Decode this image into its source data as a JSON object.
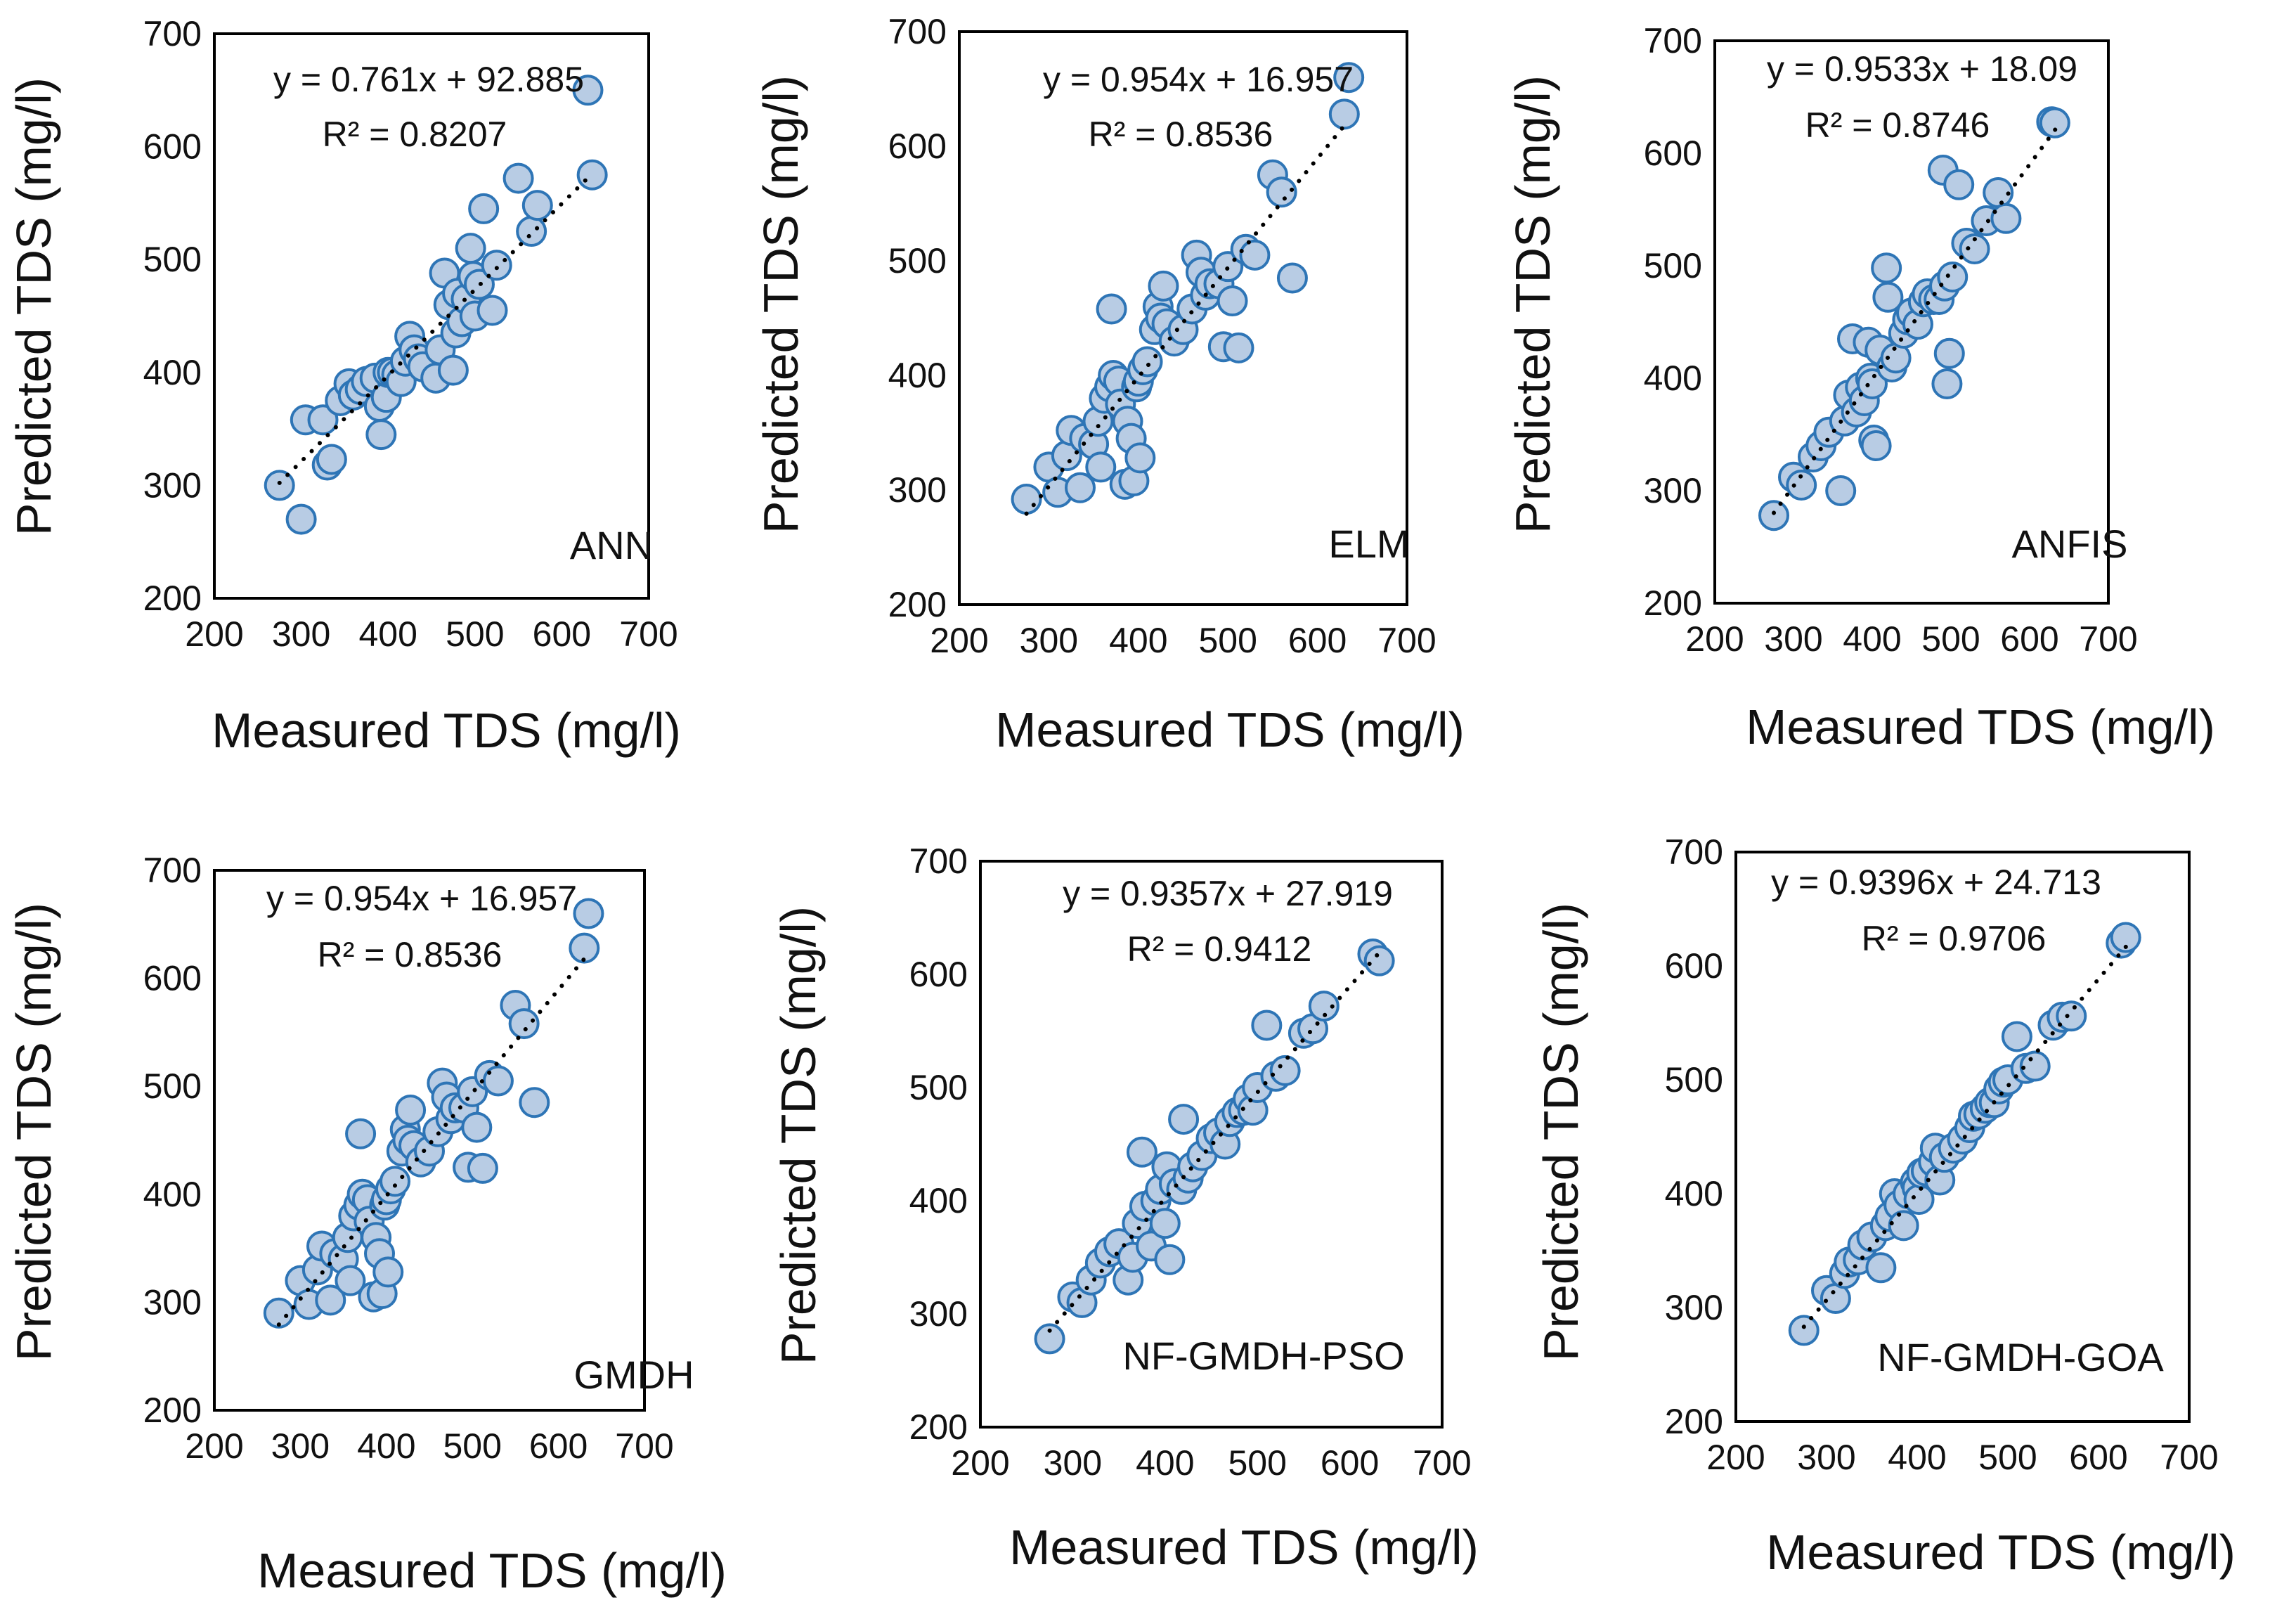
{
  "figure": {
    "style": {
      "marker_fill": "#b8cce4",
      "marker_edge": "#2e75b6",
      "trendline_color": "#000000",
      "frame_color": "#000000"
    },
    "shared_axes": {
      "xlabel": "Measured TDS (mg/l)",
      "ylabel": "Predicted TDS (mg/l)",
      "xlim": [
        200,
        700
      ],
      "ylim": [
        200,
        700
      ],
      "ticks": [
        200,
        300,
        400,
        500,
        600,
        700
      ]
    }
  },
  "chart_data": [
    {
      "type": "scatter",
      "model": "ANN",
      "xlabel": "Measured TDS (mg/l)",
      "ylabel": "Predicted TDS (mg/l)",
      "xlim": [
        200,
        700
      ],
      "ylim": [
        200,
        700
      ],
      "equation": "y = 0.761x + 92.885",
      "r2": "R² = 0.8207",
      "trend": {
        "slope": 0.761,
        "intercept": 92.885,
        "x_range": [
          275,
          635
        ]
      },
      "points": [
        [
          275,
          300
        ],
        [
          300,
          270
        ],
        [
          305,
          358
        ],
        [
          325,
          358
        ],
        [
          330,
          318
        ],
        [
          335,
          323
        ],
        [
          345,
          375
        ],
        [
          355,
          390
        ],
        [
          360,
          380
        ],
        [
          368,
          385
        ],
        [
          375,
          392
        ],
        [
          385,
          395
        ],
        [
          390,
          370
        ],
        [
          392,
          345
        ],
        [
          398,
          378
        ],
        [
          400,
          400
        ],
        [
          405,
          400
        ],
        [
          410,
          398
        ],
        [
          415,
          392
        ],
        [
          420,
          410
        ],
        [
          425,
          432
        ],
        [
          430,
          420
        ],
        [
          435,
          412
        ],
        [
          440,
          405
        ],
        [
          455,
          395
        ],
        [
          460,
          420
        ],
        [
          465,
          488
        ],
        [
          470,
          460
        ],
        [
          475,
          402
        ],
        [
          478,
          435
        ],
        [
          480,
          470
        ],
        [
          485,
          445
        ],
        [
          490,
          465
        ],
        [
          495,
          510
        ],
        [
          498,
          485
        ],
        [
          500,
          450
        ],
        [
          505,
          478
        ],
        [
          510,
          545
        ],
        [
          520,
          455
        ],
        [
          525,
          495
        ],
        [
          550,
          572
        ],
        [
          565,
          525
        ],
        [
          572,
          548
        ],
        [
          630,
          650
        ],
        [
          635,
          575
        ]
      ]
    },
    {
      "type": "scatter",
      "model": "ELM",
      "xlabel": "Measured TDS (mg/l)",
      "ylabel": "Predicted TDS (mg/l)",
      "xlim": [
        200,
        700
      ],
      "ylim": [
        200,
        700
      ],
      "equation": "y = 0.954x + 16.957",
      "r2": "R² = 0.8536",
      "trend": {
        "slope": 0.954,
        "intercept": 16.957,
        "x_range": [
          275,
          635
        ]
      },
      "points": [
        [
          275,
          292
        ],
        [
          300,
          320
        ],
        [
          310,
          298
        ],
        [
          320,
          330
        ],
        [
          325,
          352
        ],
        [
          335,
          302
        ],
        [
          340,
          345
        ],
        [
          350,
          340
        ],
        [
          355,
          360
        ],
        [
          358,
          320
        ],
        [
          362,
          380
        ],
        [
          368,
          390
        ],
        [
          370,
          458
        ],
        [
          372,
          400
        ],
        [
          378,
          395
        ],
        [
          380,
          375
        ],
        [
          385,
          305
        ],
        [
          388,
          360
        ],
        [
          392,
          345
        ],
        [
          395,
          308
        ],
        [
          398,
          390
        ],
        [
          400,
          395
        ],
        [
          402,
          328
        ],
        [
          405,
          405
        ],
        [
          410,
          412
        ],
        [
          418,
          440
        ],
        [
          422,
          460
        ],
        [
          425,
          450
        ],
        [
          428,
          478
        ],
        [
          432,
          445
        ],
        [
          440,
          430
        ],
        [
          450,
          440
        ],
        [
          460,
          458
        ],
        [
          465,
          505
        ],
        [
          470,
          490
        ],
        [
          475,
          470
        ],
        [
          480,
          480
        ],
        [
          490,
          480
        ],
        [
          495,
          425
        ],
        [
          500,
          495
        ],
        [
          505,
          465
        ],
        [
          512,
          424
        ],
        [
          520,
          510
        ],
        [
          530,
          505
        ],
        [
          550,
          575
        ],
        [
          560,
          560
        ],
        [
          572,
          485
        ],
        [
          630,
          628
        ],
        [
          635,
          660
        ]
      ]
    },
    {
      "type": "scatter",
      "model": "ANFIS",
      "xlabel": "Measured TDS (mg/l)",
      "ylabel": "Predicted TDS (mg/l)",
      "xlim": [
        200,
        700
      ],
      "ylim": [
        200,
        700
      ],
      "equation": "y = 0.9533x + 18.09",
      "r2": "R² = 0.8746",
      "trend": {
        "slope": 0.9533,
        "intercept": 18.09,
        "x_range": [
          275,
          635
        ]
      },
      "points": [
        [
          275,
          278
        ],
        [
          300,
          312
        ],
        [
          310,
          305
        ],
        [
          325,
          330
        ],
        [
          335,
          340
        ],
        [
          345,
          352
        ],
        [
          360,
          300
        ],
        [
          365,
          362
        ],
        [
          370,
          385
        ],
        [
          375,
          435
        ],
        [
          380,
          370
        ],
        [
          385,
          392
        ],
        [
          390,
          380
        ],
        [
          395,
          432
        ],
        [
          398,
          400
        ],
        [
          400,
          395
        ],
        [
          402,
          345
        ],
        [
          405,
          340
        ],
        [
          410,
          425
        ],
        [
          418,
          498
        ],
        [
          420,
          472
        ],
        [
          425,
          410
        ],
        [
          430,
          418
        ],
        [
          440,
          440
        ],
        [
          445,
          452
        ],
        [
          450,
          458
        ],
        [
          458,
          448
        ],
        [
          465,
          468
        ],
        [
          470,
          475
        ],
        [
          478,
          470
        ],
        [
          485,
          470
        ],
        [
          490,
          585
        ],
        [
          492,
          482
        ],
        [
          495,
          395
        ],
        [
          498,
          422
        ],
        [
          502,
          490
        ],
        [
          510,
          572
        ],
        [
          520,
          520
        ],
        [
          530,
          515
        ],
        [
          545,
          540
        ],
        [
          560,
          565
        ],
        [
          570,
          542
        ],
        [
          628,
          628
        ],
        [
          632,
          627
        ]
      ]
    },
    {
      "type": "scatter",
      "model": "GMDH",
      "xlabel": "Measured TDS (mg/l)",
      "ylabel": "Predicted TDS (mg/l)",
      "xlim": [
        200,
        700
      ],
      "ylim": [
        200,
        700
      ],
      "equation": "y = 0.954x + 16.957",
      "r2": "R² = 0.8536",
      "trend": {
        "slope": 0.954,
        "intercept": 16.957,
        "x_range": [
          275,
          635
        ]
      },
      "points": [
        [
          275,
          290
        ],
        [
          300,
          320
        ],
        [
          310,
          298
        ],
        [
          320,
          330
        ],
        [
          325,
          352
        ],
        [
          335,
          302
        ],
        [
          340,
          345
        ],
        [
          350,
          340
        ],
        [
          355,
          360
        ],
        [
          358,
          320
        ],
        [
          362,
          380
        ],
        [
          368,
          390
        ],
        [
          370,
          456
        ],
        [
          372,
          400
        ],
        [
          378,
          395
        ],
        [
          380,
          375
        ],
        [
          385,
          305
        ],
        [
          388,
          360
        ],
        [
          392,
          345
        ],
        [
          395,
          308
        ],
        [
          398,
          390
        ],
        [
          400,
          395
        ],
        [
          402,
          328
        ],
        [
          405,
          405
        ],
        [
          410,
          412
        ],
        [
          418,
          440
        ],
        [
          422,
          460
        ],
        [
          425,
          450
        ],
        [
          428,
          478
        ],
        [
          432,
          445
        ],
        [
          440,
          430
        ],
        [
          450,
          440
        ],
        [
          460,
          458
        ],
        [
          465,
          503
        ],
        [
          470,
          490
        ],
        [
          475,
          470
        ],
        [
          480,
          480
        ],
        [
          490,
          480
        ],
        [
          495,
          425
        ],
        [
          500,
          495
        ],
        [
          505,
          462
        ],
        [
          512,
          424
        ],
        [
          520,
          510
        ],
        [
          530,
          505
        ],
        [
          550,
          575
        ],
        [
          560,
          558
        ],
        [
          572,
          485
        ],
        [
          630,
          628
        ],
        [
          635,
          660
        ]
      ]
    },
    {
      "type": "scatter",
      "model": "NF-GMDH-PSO",
      "xlabel": "Measured TDS (mg/l)",
      "ylabel": "Predicted TDS (mg/l)",
      "xlim": [
        200,
        700
      ],
      "ylim": [
        200,
        700
      ],
      "equation": "y = 0.9357x + 27.919",
      "r2": "R² = 0.9412",
      "trend": {
        "slope": 0.9357,
        "intercept": 27.919,
        "x_range": [
          275,
          635
        ]
      },
      "points": [
        [
          275,
          278
        ],
        [
          300,
          315
        ],
        [
          310,
          310
        ],
        [
          320,
          330
        ],
        [
          330,
          345
        ],
        [
          340,
          355
        ],
        [
          350,
          362
        ],
        [
          360,
          330
        ],
        [
          365,
          350
        ],
        [
          370,
          380
        ],
        [
          375,
          443
        ],
        [
          378,
          395
        ],
        [
          385,
          360
        ],
        [
          390,
          400
        ],
        [
          395,
          410
        ],
        [
          400,
          380
        ],
        [
          402,
          430
        ],
        [
          405,
          348
        ],
        [
          410,
          415
        ],
        [
          418,
          410
        ],
        [
          420,
          472
        ],
        [
          425,
          420
        ],
        [
          430,
          430
        ],
        [
          440,
          440
        ],
        [
          450,
          455
        ],
        [
          458,
          460
        ],
        [
          465,
          450
        ],
        [
          470,
          470
        ],
        [
          478,
          478
        ],
        [
          485,
          480
        ],
        [
          490,
          490
        ],
        [
          495,
          480
        ],
        [
          500,
          500
        ],
        [
          510,
          555
        ],
        [
          520,
          510
        ],
        [
          530,
          515
        ],
        [
          550,
          548
        ],
        [
          560,
          552
        ],
        [
          572,
          572
        ],
        [
          625,
          618
        ],
        [
          632,
          612
        ]
      ]
    },
    {
      "type": "scatter",
      "model": "NF-GMDH-GOA",
      "xlabel": "Measured TDS (mg/l)",
      "ylabel": "Predicted TDS (mg/l)",
      "xlim": [
        200,
        700
      ],
      "ylim": [
        200,
        700
      ],
      "equation": "y = 0.9396x + 24.713",
      "r2": "R² = 0.9706",
      "trend": {
        "slope": 0.9396,
        "intercept": 24.713,
        "x_range": [
          275,
          635
        ]
      },
      "points": [
        [
          275,
          280
        ],
        [
          300,
          315
        ],
        [
          310,
          308
        ],
        [
          320,
          330
        ],
        [
          325,
          340
        ],
        [
          335,
          342
        ],
        [
          340,
          355
        ],
        [
          350,
          362
        ],
        [
          360,
          335
        ],
        [
          365,
          372
        ],
        [
          370,
          380
        ],
        [
          375,
          400
        ],
        [
          380,
          390
        ],
        [
          385,
          372
        ],
        [
          390,
          400
        ],
        [
          398,
          410
        ],
        [
          400,
          405
        ],
        [
          402,
          395
        ],
        [
          405,
          418
        ],
        [
          410,
          420
        ],
        [
          418,
          428
        ],
        [
          420,
          440
        ],
        [
          425,
          412
        ],
        [
          430,
          432
        ],
        [
          440,
          440
        ],
        [
          450,
          448
        ],
        [
          458,
          458
        ],
        [
          462,
          468
        ],
        [
          468,
          470
        ],
        [
          475,
          475
        ],
        [
          480,
          480
        ],
        [
          485,
          480
        ],
        [
          490,
          492
        ],
        [
          495,
          498
        ],
        [
          500,
          500
        ],
        [
          510,
          538
        ],
        [
          520,
          510
        ],
        [
          530,
          512
        ],
        [
          550,
          548
        ],
        [
          560,
          555
        ],
        [
          570,
          556
        ],
        [
          625,
          620
        ],
        [
          630,
          625
        ]
      ]
    }
  ]
}
